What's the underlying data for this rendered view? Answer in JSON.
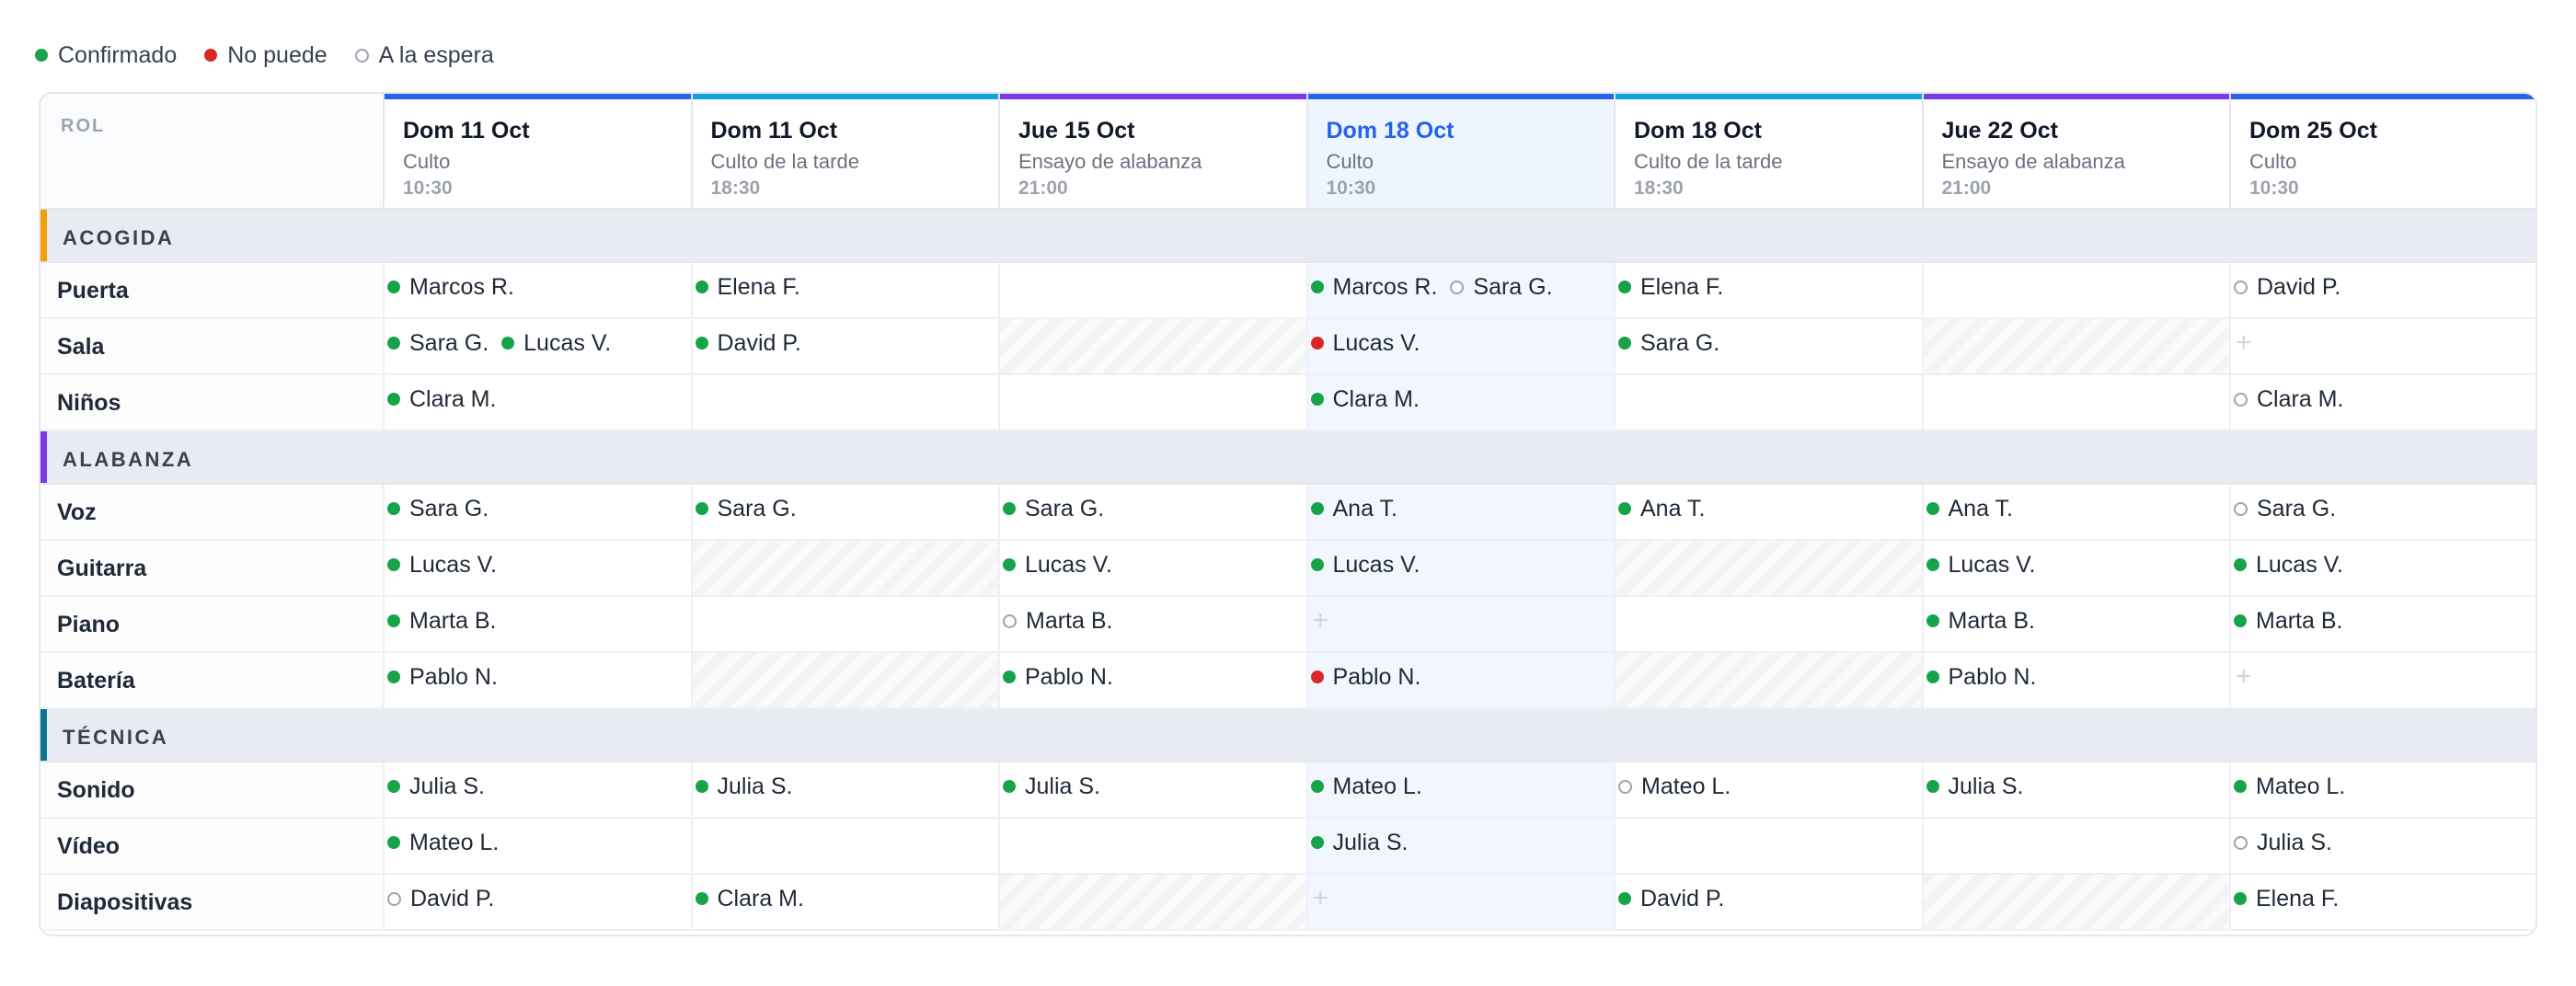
{
  "legend": {
    "confirmed": "Confirmado",
    "unavailable": "No puede",
    "waiting": "A la espera"
  },
  "header": {
    "role_col": "ROL"
  },
  "colors": {
    "confirmed": "#16a34a",
    "unavailable": "#dc2626",
    "waiting": "#9ca3af",
    "culto": "#2563eb",
    "culto_tarde": "#0ea5d8",
    "ensayo": "#7c3aed",
    "acogida": "#f59e0b",
    "alabanza": "#7c3aed",
    "tecnica": "#0e7490"
  },
  "columns": [
    {
      "day": "Dom 11 Oct",
      "event": "Culto",
      "time": "10:30",
      "bar": "culto",
      "today": false
    },
    {
      "day": "Dom 11 Oct",
      "event": "Culto de la tarde",
      "time": "18:30",
      "bar": "culto_tarde",
      "today": false
    },
    {
      "day": "Jue 15 Oct",
      "event": "Ensayo de alabanza",
      "time": "21:00",
      "bar": "ensayo",
      "today": false
    },
    {
      "day": "Dom 18 Oct",
      "event": "Culto",
      "time": "10:30",
      "bar": "culto",
      "today": true
    },
    {
      "day": "Dom 18 Oct",
      "event": "Culto de la tarde",
      "time": "18:30",
      "bar": "culto_tarde",
      "today": false
    },
    {
      "day": "Jue 22 Oct",
      "event": "Ensayo de alabanza",
      "time": "21:00",
      "bar": "ensayo",
      "today": false
    },
    {
      "day": "Dom 25 Oct",
      "event": "Culto",
      "time": "10:30",
      "bar": "culto",
      "today": false
    }
  ],
  "sections": [
    {
      "title": "ACOGIDA",
      "accent": "acogida",
      "rows": [
        {
          "role": "Puerta",
          "cells": [
            [
              {
                "n": "Marcos R.",
                "s": "confirmed"
              }
            ],
            [
              {
                "n": "Elena F.",
                "s": "confirmed"
              }
            ],
            [],
            [
              {
                "n": "Marcos R.",
                "s": "confirmed"
              },
              {
                "n": "Sara G.",
                "s": "waiting"
              }
            ],
            [
              {
                "n": "Elena F.",
                "s": "confirmed"
              }
            ],
            [],
            [
              {
                "n": "David P.",
                "s": "waiting"
              }
            ]
          ]
        },
        {
          "role": "Sala",
          "cells": [
            [
              {
                "n": "Sara G.",
                "s": "confirmed"
              },
              {
                "n": "Lucas V.",
                "s": "confirmed"
              }
            ],
            [
              {
                "n": "David P.",
                "s": "confirmed"
              }
            ],
            "na",
            [
              {
                "n": "Lucas V.",
                "s": "unavailable"
              }
            ],
            [
              {
                "n": "Sara G.",
                "s": "confirmed"
              }
            ],
            "na",
            "add"
          ]
        },
        {
          "role": "Niños",
          "cells": [
            [
              {
                "n": "Clara M.",
                "s": "confirmed"
              }
            ],
            [],
            [],
            [
              {
                "n": "Clara M.",
                "s": "confirmed"
              }
            ],
            [],
            [],
            [
              {
                "n": "Clara M.",
                "s": "waiting"
              }
            ]
          ]
        }
      ]
    },
    {
      "title": "ALABANZA",
      "accent": "alabanza",
      "rows": [
        {
          "role": "Voz",
          "cells": [
            [
              {
                "n": "Sara G.",
                "s": "confirmed"
              }
            ],
            [
              {
                "n": "Sara G.",
                "s": "confirmed"
              }
            ],
            [
              {
                "n": "Sara G.",
                "s": "confirmed"
              }
            ],
            [
              {
                "n": "Ana T.",
                "s": "confirmed"
              }
            ],
            [
              {
                "n": "Ana T.",
                "s": "confirmed"
              }
            ],
            [
              {
                "n": "Ana T.",
                "s": "confirmed"
              }
            ],
            [
              {
                "n": "Sara G.",
                "s": "waiting"
              }
            ]
          ]
        },
        {
          "role": "Guitarra",
          "cells": [
            [
              {
                "n": "Lucas V.",
                "s": "confirmed"
              }
            ],
            "na",
            [
              {
                "n": "Lucas V.",
                "s": "confirmed"
              }
            ],
            [
              {
                "n": "Lucas V.",
                "s": "confirmed"
              }
            ],
            "na",
            [
              {
                "n": "Lucas V.",
                "s": "confirmed"
              }
            ],
            [
              {
                "n": "Lucas V.",
                "s": "confirmed"
              }
            ]
          ]
        },
        {
          "role": "Piano",
          "cells": [
            [
              {
                "n": "Marta B.",
                "s": "confirmed"
              }
            ],
            [],
            [
              {
                "n": "Marta B.",
                "s": "waiting"
              }
            ],
            "add",
            [],
            [
              {
                "n": "Marta B.",
                "s": "confirmed"
              }
            ],
            [
              {
                "n": "Marta B.",
                "s": "confirmed"
              }
            ]
          ]
        },
        {
          "role": "Batería",
          "cells": [
            [
              {
                "n": "Pablo N.",
                "s": "confirmed"
              }
            ],
            "na",
            [
              {
                "n": "Pablo N.",
                "s": "confirmed"
              }
            ],
            [
              {
                "n": "Pablo N.",
                "s": "unavailable"
              }
            ],
            "na",
            [
              {
                "n": "Pablo N.",
                "s": "confirmed"
              }
            ],
            "add"
          ]
        }
      ]
    },
    {
      "title": "TÉCNICA",
      "accent": "tecnica",
      "rows": [
        {
          "role": "Sonido",
          "cells": [
            [
              {
                "n": "Julia S.",
                "s": "confirmed"
              }
            ],
            [
              {
                "n": "Julia S.",
                "s": "confirmed"
              }
            ],
            [
              {
                "n": "Julia S.",
                "s": "confirmed"
              }
            ],
            [
              {
                "n": "Mateo L.",
                "s": "confirmed"
              }
            ],
            [
              {
                "n": "Mateo L.",
                "s": "waiting"
              }
            ],
            [
              {
                "n": "Julia S.",
                "s": "confirmed"
              }
            ],
            [
              {
                "n": "Mateo L.",
                "s": "confirmed"
              }
            ]
          ]
        },
        {
          "role": "Vídeo",
          "cells": [
            [
              {
                "n": "Mateo L.",
                "s": "confirmed"
              }
            ],
            [],
            [],
            [
              {
                "n": "Julia S.",
                "s": "confirmed"
              }
            ],
            [],
            [],
            [
              {
                "n": "Julia S.",
                "s": "waiting"
              }
            ]
          ]
        },
        {
          "role": "Diapositivas",
          "cells": [
            [
              {
                "n": "David P.",
                "s": "waiting"
              }
            ],
            [
              {
                "n": "Clara M.",
                "s": "confirmed"
              }
            ],
            "na",
            "add",
            [
              {
                "n": "David P.",
                "s": "confirmed"
              }
            ],
            "na",
            [
              {
                "n": "Elena F.",
                "s": "confirmed"
              }
            ]
          ]
        }
      ]
    }
  ]
}
